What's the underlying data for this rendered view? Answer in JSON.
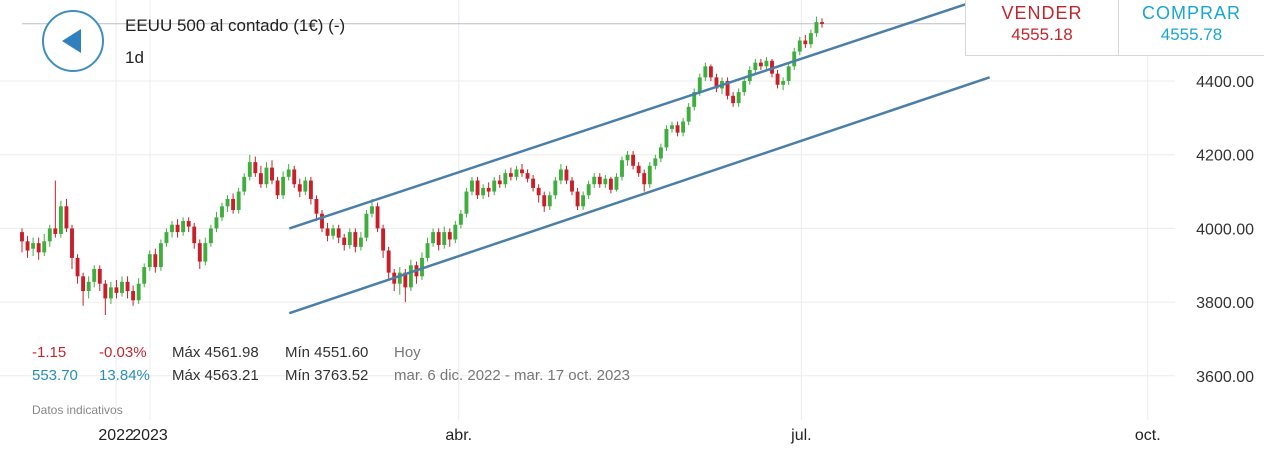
{
  "header": {
    "title": "EEUU 500 al contado (1€) (-)",
    "interval": "1d",
    "back_icon": "back-arrow-icon"
  },
  "trade": {
    "sell_label": "VENDER",
    "sell_price": "4555.18",
    "buy_label": "COMPRAR",
    "buy_price": "4555.78"
  },
  "stats": {
    "today": {
      "change": "-1.15",
      "change_pct": "-0.03%",
      "max": "Máx 4561.98",
      "min": "Mín 4551.60",
      "period": "Hoy"
    },
    "range": {
      "change": "553.70",
      "change_pct": "13.84%",
      "max": "Máx 4563.21",
      "min": "Mín 3763.52",
      "period": "mar. 6 dic. 2022 - mar. 17 oct. 2023"
    }
  },
  "footnote": "Datos indicativos",
  "colors": {
    "up": "#3fae3f",
    "down": "#c8202a",
    "trendline": "#4a7fa8",
    "sell": "#c0282d",
    "buy": "#1aa6d3"
  },
  "chart_data": {
    "type": "candlestick",
    "x_ticks": [
      {
        "label": "2022",
        "date": "2022-12-31"
      },
      {
        "label": "2023",
        "date": "2023-01-09"
      },
      {
        "label": "abr.",
        "date": "2023-04-01"
      },
      {
        "label": "jul.",
        "date": "2023-07-01"
      },
      {
        "label": "oct.",
        "date": "2023-10-01"
      }
    ],
    "y_ticks": [
      "3600.00",
      "3800.00",
      "4000.00",
      "4200.00",
      "4400.00"
    ],
    "ylim": [
      3480,
      4620
    ],
    "xlim": [
      "2022-12-06",
      "2023-10-17"
    ],
    "grid": true,
    "last_price": 4555.5,
    "trendlines": [
      {
        "from": {
          "date": "2023-02-15",
          "value": 4000
        },
        "to": {
          "date": "2023-08-20",
          "value": 4630
        }
      },
      {
        "from": {
          "date": "2023-02-15",
          "value": 3770
        },
        "to": {
          "date": "2023-08-20",
          "value": 4410
        }
      }
    ],
    "candles": [
      [
        3990,
        3965,
        4000,
        3935
      ],
      [
        3965,
        3940,
        3980,
        3920
      ],
      [
        3945,
        3960,
        3975,
        3925
      ],
      [
        3960,
        3935,
        3975,
        3915
      ],
      [
        3935,
        3965,
        3985,
        3925
      ],
      [
        3965,
        4000,
        4010,
        3950
      ],
      [
        4000,
        3985,
        4130,
        3975
      ],
      [
        3985,
        4060,
        4075,
        3975
      ],
      [
        4060,
        4000,
        4080,
        3990
      ],
      [
        4000,
        3920,
        4010,
        3890
      ],
      [
        3920,
        3870,
        3930,
        3850
      ],
      [
        3870,
        3830,
        3880,
        3790
      ],
      [
        3830,
        3855,
        3870,
        3810
      ],
      [
        3855,
        3890,
        3900,
        3840
      ],
      [
        3890,
        3850,
        3900,
        3830
      ],
      [
        3850,
        3810,
        3860,
        3765
      ],
      [
        3810,
        3840,
        3855,
        3795
      ],
      [
        3840,
        3825,
        3860,
        3810
      ],
      [
        3825,
        3855,
        3870,
        3815
      ],
      [
        3855,
        3830,
        3870,
        3810
      ],
      [
        3830,
        3805,
        3845,
        3790
      ],
      [
        3805,
        3850,
        3865,
        3795
      ],
      [
        3850,
        3895,
        3905,
        3840
      ],
      [
        3895,
        3930,
        3940,
        3885
      ],
      [
        3930,
        3895,
        3945,
        3880
      ],
      [
        3895,
        3960,
        3970,
        3885
      ],
      [
        3960,
        3990,
        4000,
        3950
      ],
      [
        3990,
        4010,
        4020,
        3975
      ],
      [
        4010,
        3990,
        4025,
        3975
      ],
      [
        3990,
        4020,
        4030,
        3980
      ],
      [
        4020,
        4005,
        4030,
        3990
      ],
      [
        4005,
        3960,
        4015,
        3945
      ],
      [
        3960,
        3910,
        3970,
        3890
      ],
      [
        3910,
        3960,
        3975,
        3900
      ],
      [
        3960,
        4000,
        4010,
        3950
      ],
      [
        4000,
        4030,
        4045,
        3990
      ],
      [
        4030,
        4060,
        4070,
        4020
      ],
      [
        4060,
        4080,
        4090,
        4045
      ],
      [
        4080,
        4050,
        4095,
        4040
      ],
      [
        4050,
        4100,
        4110,
        4040
      ],
      [
        4100,
        4140,
        4150,
        4090
      ],
      [
        4140,
        4180,
        4200,
        4130
      ],
      [
        4180,
        4150,
        4195,
        4140
      ],
      [
        4150,
        4120,
        4170,
        4110
      ],
      [
        4120,
        4165,
        4180,
        4110
      ],
      [
        4165,
        4130,
        4185,
        4120
      ],
      [
        4130,
        4090,
        4140,
        4080
      ],
      [
        4090,
        4140,
        4155,
        4080
      ],
      [
        4140,
        4160,
        4175,
        4130
      ],
      [
        4160,
        4120,
        4170,
        4110
      ],
      [
        4120,
        4100,
        4135,
        4085
      ],
      [
        4100,
        4130,
        4140,
        4090
      ],
      [
        4130,
        4080,
        4140,
        4065
      ],
      [
        4080,
        4040,
        4090,
        4020
      ],
      [
        4040,
        4000,
        4050,
        3990
      ],
      [
        4000,
        3980,
        4015,
        3965
      ],
      [
        3980,
        4000,
        4010,
        3970
      ],
      [
        4000,
        3975,
        4010,
        3960
      ],
      [
        3975,
        3955,
        3985,
        3940
      ],
      [
        3955,
        3990,
        4000,
        3945
      ],
      [
        3990,
        3950,
        4000,
        3935
      ],
      [
        3950,
        3975,
        3990,
        3940
      ],
      [
        3975,
        4040,
        4050,
        3965
      ],
      [
        4040,
        4060,
        4080,
        4030
      ],
      [
        4060,
        4000,
        4070,
        3990
      ],
      [
        4000,
        3940,
        4010,
        3920
      ],
      [
        3940,
        3880,
        3950,
        3860
      ],
      [
        3880,
        3850,
        3890,
        3830
      ],
      [
        3850,
        3880,
        3895,
        3820
      ],
      [
        3880,
        3840,
        3890,
        3800
      ],
      [
        3840,
        3900,
        3915,
        3830
      ],
      [
        3900,
        3870,
        3910,
        3850
      ],
      [
        3870,
        3920,
        3935,
        3860
      ],
      [
        3920,
        3960,
        3975,
        3910
      ],
      [
        3960,
        3990,
        4000,
        3950
      ],
      [
        3990,
        3955,
        4000,
        3940
      ],
      [
        3955,
        3990,
        4005,
        3945
      ],
      [
        3990,
        3970,
        4000,
        3950
      ],
      [
        3970,
        4010,
        4020,
        3960
      ],
      [
        4010,
        4040,
        4050,
        4000
      ],
      [
        4040,
        4100,
        4110,
        4030
      ],
      [
        4100,
        4130,
        4140,
        4090
      ],
      [
        4130,
        4090,
        4140,
        4080
      ],
      [
        4090,
        4110,
        4120,
        4080
      ],
      [
        4110,
        4100,
        4125,
        4085
      ],
      [
        4100,
        4130,
        4140,
        4090
      ],
      [
        4130,
        4120,
        4145,
        4110
      ],
      [
        4120,
        4150,
        4160,
        4110
      ],
      [
        4150,
        4140,
        4165,
        4130
      ],
      [
        4140,
        4160,
        4170,
        4130
      ],
      [
        4160,
        4150,
        4175,
        4140
      ],
      [
        4150,
        4135,
        4160,
        4125
      ],
      [
        4135,
        4110,
        4145,
        4100
      ],
      [
        4110,
        4090,
        4120,
        4070
      ],
      [
        4090,
        4060,
        4100,
        4045
      ],
      [
        4060,
        4090,
        4100,
        4050
      ],
      [
        4090,
        4130,
        4140,
        4080
      ],
      [
        4130,
        4160,
        4175,
        4120
      ],
      [
        4160,
        4130,
        4170,
        4120
      ],
      [
        4130,
        4100,
        4140,
        4090
      ],
      [
        4100,
        4060,
        4110,
        4050
      ],
      [
        4060,
        4090,
        4100,
        4050
      ],
      [
        4090,
        4120,
        4130,
        4080
      ],
      [
        4120,
        4140,
        4150,
        4110
      ],
      [
        4140,
        4120,
        4150,
        4110
      ],
      [
        4120,
        4135,
        4145,
        4110
      ],
      [
        4135,
        4105,
        4140,
        4095
      ],
      [
        4105,
        4140,
        4150,
        4100
      ],
      [
        4140,
        4185,
        4195,
        4130
      ],
      [
        4185,
        4200,
        4210,
        4170
      ],
      [
        4200,
        4170,
        4210,
        4160
      ],
      [
        4170,
        4150,
        4180,
        4140
      ],
      [
        4150,
        4120,
        4160,
        4100
      ],
      [
        4120,
        4170,
        4180,
        4110
      ],
      [
        4170,
        4190,
        4200,
        4160
      ],
      [
        4190,
        4220,
        4230,
        4180
      ],
      [
        4220,
        4270,
        4280,
        4210
      ],
      [
        4270,
        4280,
        4290,
        4260
      ],
      [
        4280,
        4260,
        4290,
        4250
      ],
      [
        4260,
        4290,
        4300,
        4250
      ],
      [
        4290,
        4330,
        4340,
        4280
      ],
      [
        4330,
        4370,
        4380,
        4320
      ],
      [
        4370,
        4410,
        4420,
        4360
      ],
      [
        4410,
        4440,
        4450,
        4400
      ],
      [
        4440,
        4410,
        4445,
        4400
      ],
      [
        4410,
        4380,
        4420,
        4370
      ],
      [
        4380,
        4400,
        4410,
        4365
      ],
      [
        4400,
        4360,
        4410,
        4350
      ],
      [
        4360,
        4340,
        4370,
        4330
      ],
      [
        4340,
        4370,
        4380,
        4330
      ],
      [
        4370,
        4400,
        4410,
        4360
      ],
      [
        4400,
        4430,
        4440,
        4390
      ],
      [
        4430,
        4450,
        4460,
        4420
      ],
      [
        4450,
        4440,
        4460,
        4430
      ],
      [
        4440,
        4455,
        4465,
        4430
      ],
      [
        4455,
        4420,
        4460,
        4410
      ],
      [
        4420,
        4390,
        4430,
        4380
      ],
      [
        4390,
        4400,
        4410,
        4375
      ],
      [
        4400,
        4440,
        4450,
        4390
      ],
      [
        4440,
        4480,
        4490,
        4430
      ],
      [
        4480,
        4510,
        4520,
        4470
      ],
      [
        4510,
        4500,
        4525,
        4490
      ],
      [
        4500,
        4530,
        4540,
        4490
      ],
      [
        4530,
        4560,
        4575,
        4520
      ],
      [
        4560,
        4555,
        4570,
        4545
      ]
    ]
  }
}
